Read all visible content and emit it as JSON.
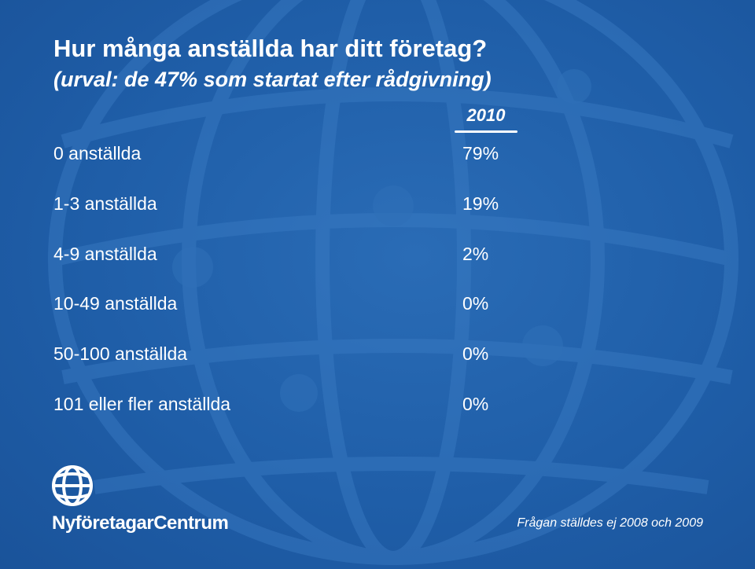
{
  "header": {
    "title": "Hur många anställda har ditt företag?",
    "subtitle": "(urval: de 47% som startat efter rådgivning)"
  },
  "table": {
    "columns": [
      "2010"
    ],
    "rows": [
      [
        "0 anställda",
        "79%"
      ],
      [
        "1-3 anställda",
        "19%"
      ],
      [
        "4-9 anställda",
        "2%"
      ],
      [
        "10-49 anställda",
        "0%"
      ],
      [
        "50-100 anställda",
        "0%"
      ],
      [
        "101 eller fler anställda",
        "0%"
      ]
    ]
  },
  "footer": {
    "brand": "NyföretagarCentrum",
    "note": "Frågan ställdes ej 2008 och 2009"
  }
}
